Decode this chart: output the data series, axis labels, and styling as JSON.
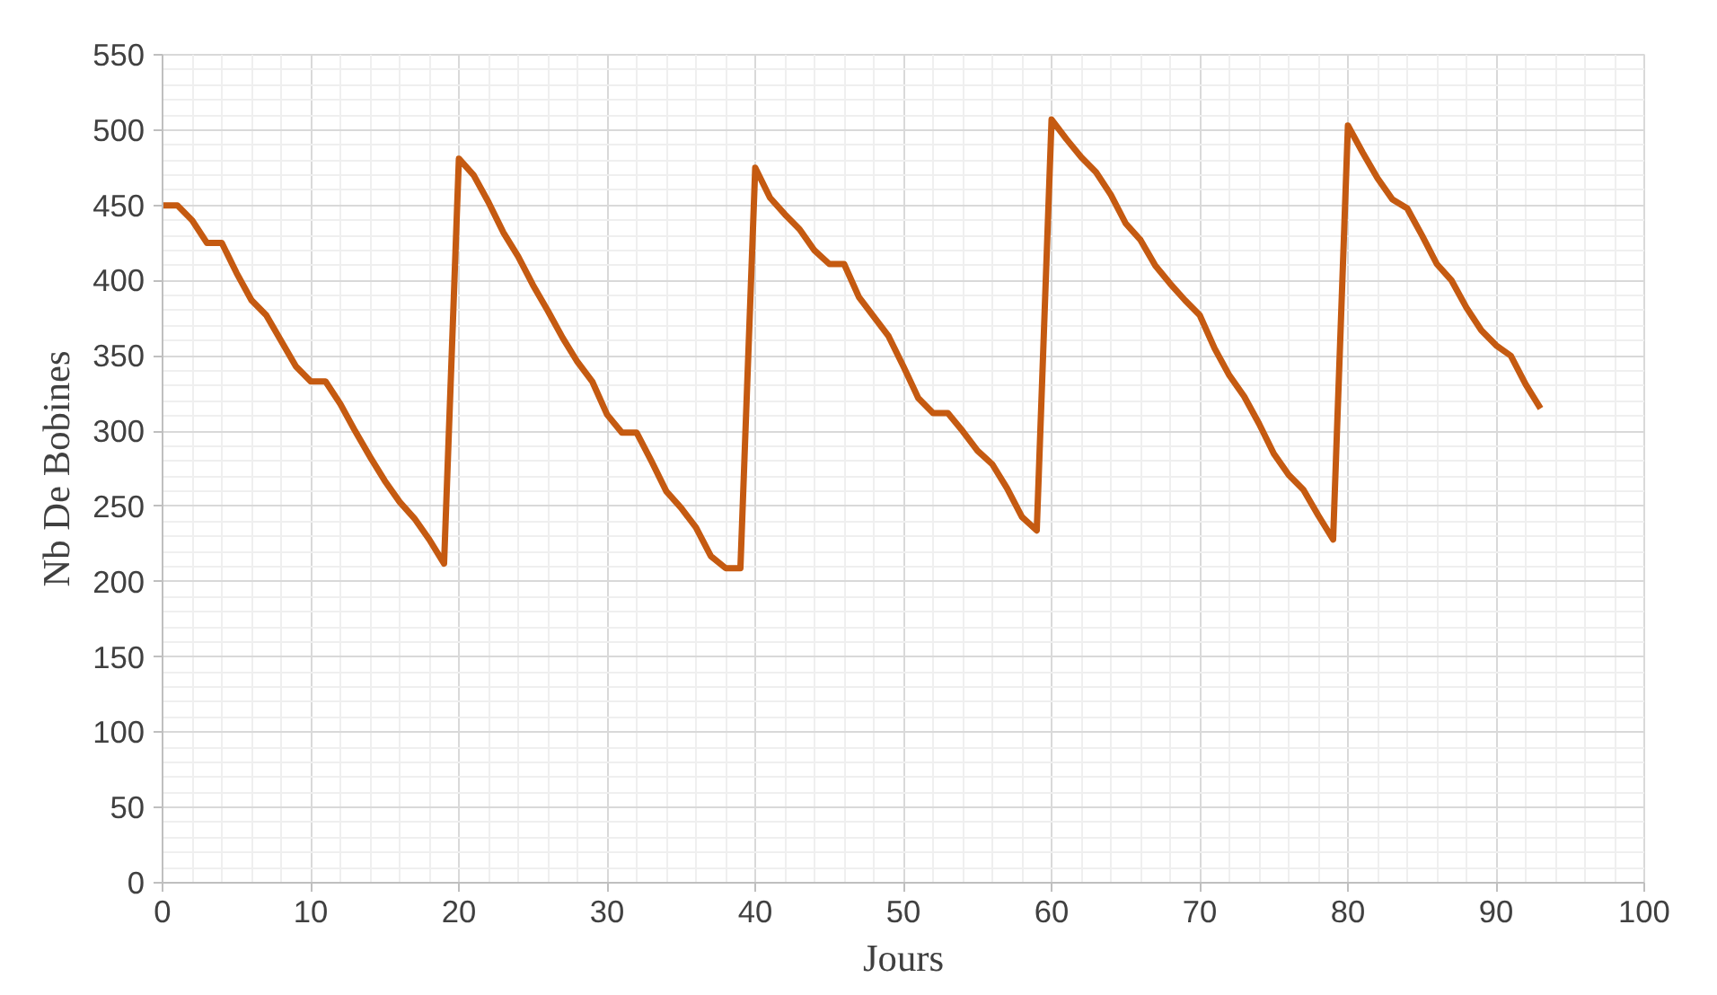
{
  "chart_data": {
    "type": "line",
    "xlabel": "Jours",
    "ylabel": "Nb De Bobines",
    "x": [
      0,
      1,
      2,
      3,
      4,
      5,
      6,
      7,
      8,
      9,
      10,
      11,
      12,
      13,
      14,
      15,
      16,
      17,
      18,
      19,
      20,
      21,
      22,
      23,
      24,
      25,
      26,
      27,
      28,
      29,
      30,
      31,
      32,
      33,
      34,
      35,
      36,
      37,
      38,
      39,
      40,
      41,
      42,
      43,
      44,
      45,
      46,
      47,
      48,
      49,
      50,
      51,
      52,
      53,
      54,
      55,
      56,
      57,
      58,
      59,
      60,
      61,
      62,
      63,
      64,
      65,
      66,
      67,
      68,
      69,
      70,
      71,
      72,
      73,
      74,
      75,
      76,
      77,
      78,
      79,
      80,
      81,
      82,
      83,
      84,
      85,
      86,
      87,
      88,
      89,
      90,
      91,
      92,
      93
    ],
    "series": [
      {
        "color": "#c55a11",
        "values": [
          450,
          450,
          440,
          425,
          425,
          405,
          387,
          377,
          360,
          343,
          333,
          333,
          318,
          300,
          283,
          267,
          253,
          242,
          228,
          212,
          481,
          470,
          452,
          432,
          416,
          397,
          380,
          362,
          346,
          333,
          311,
          299,
          299,
          280,
          260,
          249,
          236,
          217,
          209,
          209,
          475,
          455,
          444,
          434,
          420,
          411,
          411,
          389,
          376,
          363,
          343,
          322,
          312,
          312,
          300,
          287,
          278,
          262,
          243,
          234,
          507,
          494,
          482,
          472,
          457,
          438,
          427,
          410,
          398,
          387,
          377,
          355,
          337,
          323,
          305,
          285,
          271,
          261,
          244,
          228,
          503,
          485,
          468,
          454,
          448,
          430,
          411,
          400,
          382,
          367,
          357,
          350,
          331,
          315
        ]
      }
    ],
    "xlim": [
      0,
      100
    ],
    "xticks": [
      0,
      10,
      20,
      30,
      40,
      50,
      60,
      70,
      80,
      90,
      100
    ],
    "ylim": [
      0,
      550
    ],
    "yticks": [
      0,
      50,
      100,
      150,
      200,
      250,
      300,
      350,
      400,
      450,
      500,
      550
    ],
    "grid": true,
    "marker": "none",
    "line_style": "solid"
  }
}
